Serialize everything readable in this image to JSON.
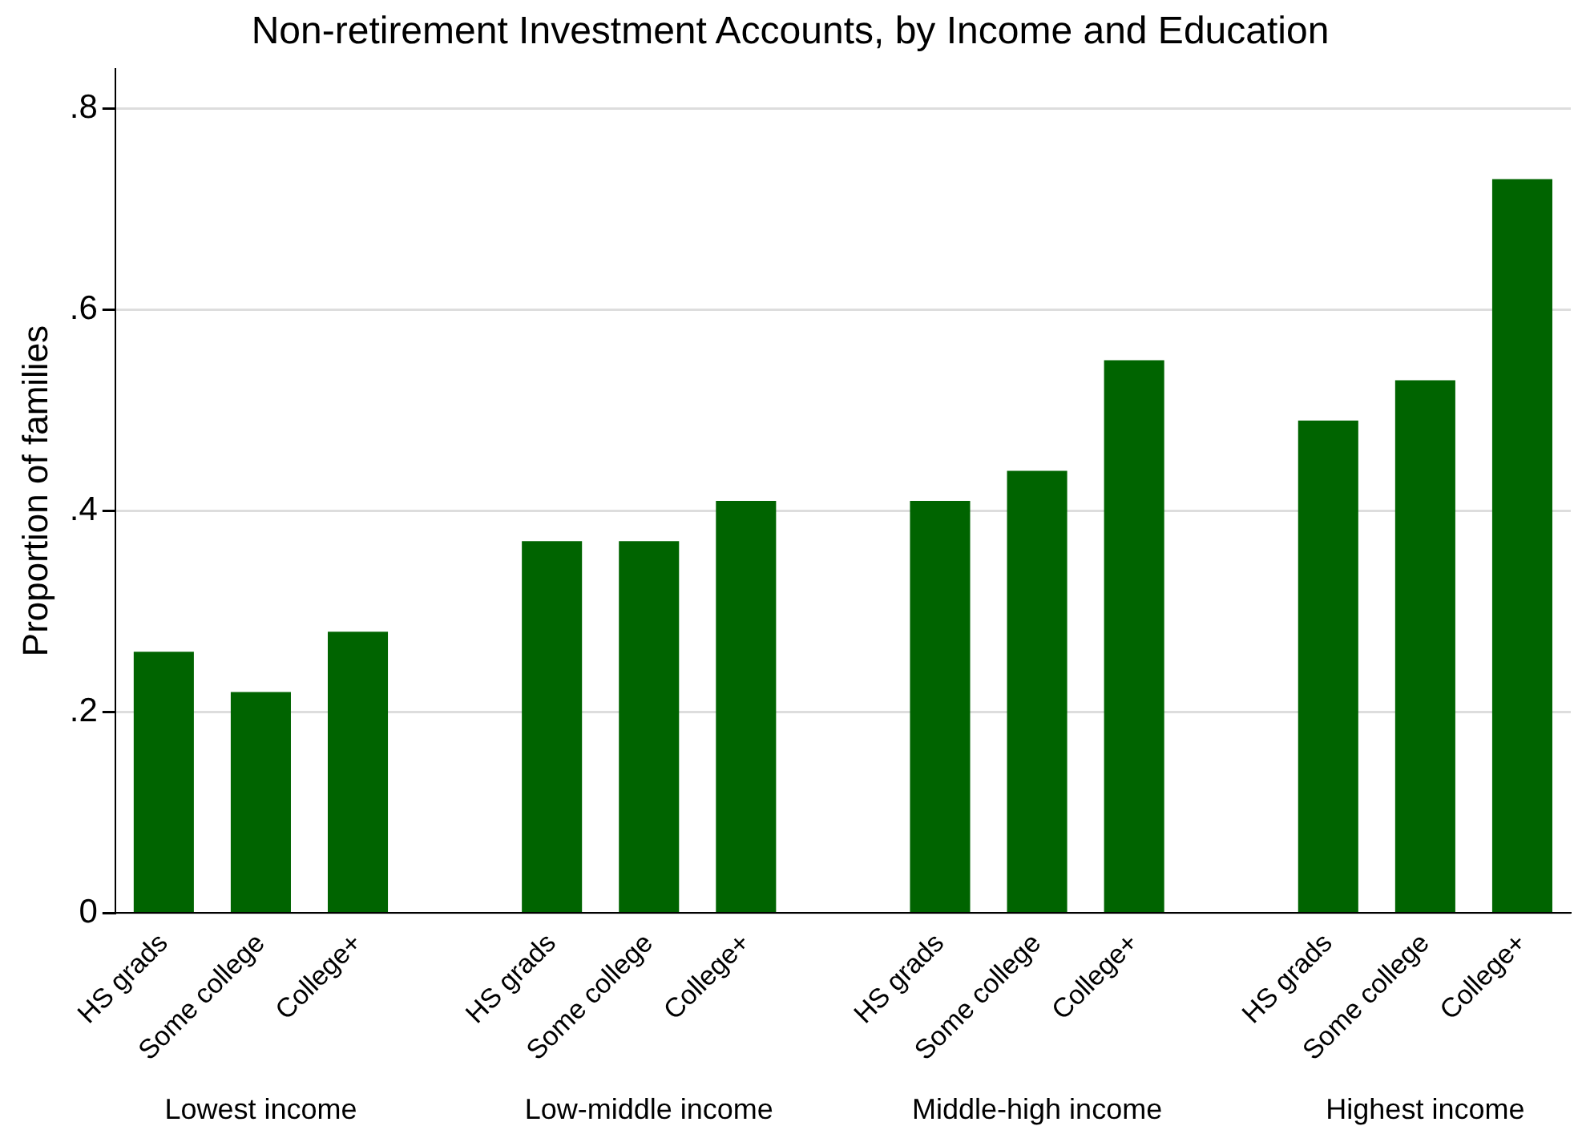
{
  "chart_data": {
    "type": "bar",
    "title": "Non-retirement Investment Accounts, by Income and Education",
    "ylabel": "Proportion of families",
    "categories": [
      "HS grads",
      "Some college",
      "College+",
      null,
      "HS grads",
      "Some college",
      "College+",
      null,
      "HS grads",
      "Some college",
      "College+",
      null,
      "HS grads",
      "Some college",
      "College+"
    ],
    "values": [
      0.26,
      0.22,
      0.28,
      null,
      0.37,
      0.37,
      0.41,
      null,
      0.41,
      0.44,
      0.55,
      null,
      0.49,
      0.53,
      0.73
    ],
    "color": "#006400",
    "ylim": [
      0,
      0.84
    ],
    "yticks": [
      0,
      {
        "value": 0.2,
        "label": ".2"
      },
      {
        "value": 0.4,
        "label": ".4"
      },
      {
        "value": 0.6,
        "label": ".6"
      },
      {
        "value": 0.8,
        "label": ".8"
      }
    ],
    "grid": "y",
    "legend": false,
    "annotations": [
      "Lowest income",
      "Low-middle income",
      "Middle-high income",
      "Highest income"
    ]
  }
}
